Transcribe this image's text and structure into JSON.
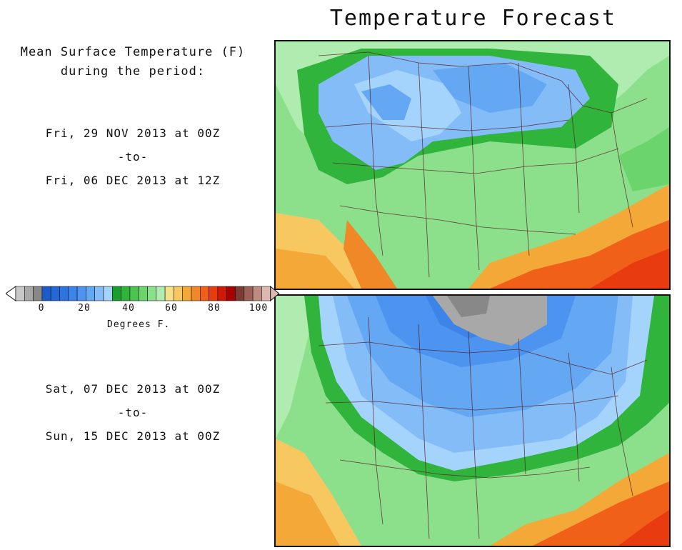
{
  "title": "Temperature Forecast",
  "description": {
    "line1": "Mean Surface Temperature (F)",
    "line2": "during the period:"
  },
  "period1": {
    "start": "Fri, 29 NOV 2013 at 00Z",
    "sep": "-to-",
    "end": "Fri, 06 DEC 2013 at 12Z"
  },
  "period2": {
    "start": "Sat, 07 DEC 2013 at 00Z",
    "sep": "-to-",
    "end": "Sun, 15 DEC 2013 at 00Z"
  },
  "colorbar": {
    "label": "Degrees F.",
    "tick_labels": [
      "0",
      "20",
      "40",
      "60",
      "80",
      "100"
    ],
    "colors": [
      "#c8c8c8",
      "#a8a8a8",
      "#888888",
      "#1c5cc8",
      "#2468d8",
      "#2c74e0",
      "#3c84e8",
      "#4c94f0",
      "#64a8f4",
      "#84bcf8",
      "#a4d4fc",
      "#18a02c",
      "#30b43c",
      "#4cc450",
      "#6cd46c",
      "#8ce08c",
      "#b0ecb0",
      "#f4e088",
      "#f8c860",
      "#f4a838",
      "#f08828",
      "#f06018",
      "#e83c10",
      "#d01808",
      "#a80000",
      "#7c3c34",
      "#9c6058",
      "#bc8c80",
      "#dcb8b0"
    ]
  }
}
